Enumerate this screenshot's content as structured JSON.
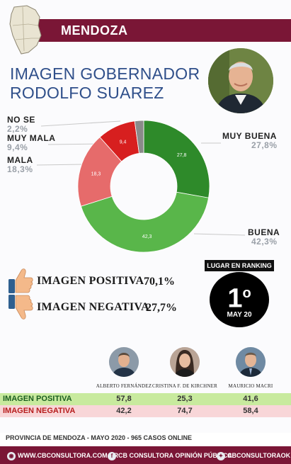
{
  "header": {
    "title": "MENDOZA"
  },
  "main_title": "IMAGEN GOBERNADOR RODOLFO SUAREZ",
  "chart_data": {
    "type": "pie",
    "categories": [
      "MUY BUENA",
      "BUENA",
      "MALA",
      "MUY MALA",
      "NO SE"
    ],
    "values": [
      27.8,
      42.3,
      18.3,
      9.4,
      2.2
    ],
    "value_labels": [
      "27,8%",
      "42,3%",
      "18,3%",
      "9,4%",
      "2,2%"
    ],
    "inner_labels": [
      "27,8",
      "42,3",
      "18,3",
      "9,4",
      ""
    ],
    "colors": [
      "#2e8a2a",
      "#59b64a",
      "#e66b6b",
      "#d71f1f",
      "#8a8a8a"
    ]
  },
  "image_summary": {
    "positive_label": "IMAGEN POSITIVA",
    "positive_value": "70,1%",
    "negative_label": "IMAGEN NEGATIVA",
    "negative_value": "27,7%"
  },
  "ranking": {
    "title": "LUGAR EN RANKING",
    "number": "1",
    "suffix": "o",
    "period": "MAY 20"
  },
  "comparison": {
    "candidates": [
      "ALBERTO FERNÁNDEZ",
      "CRISTINA F. DE KIRCHNER",
      "MAURICIO MACRI"
    ],
    "positive_label": "IMAGEN POSITIVA",
    "negative_label": "IMAGEN NEGATIVA",
    "positive_values": [
      "57,8",
      "25,3",
      "41,6"
    ],
    "negative_values": [
      "42,2",
      "74,7",
      "58,4"
    ],
    "positive_color": "#c8ea9e",
    "negative_color": "#f8d6d8"
  },
  "footer": {
    "text": "PROVINCIA DE MENDOZA - MAYO 2020 -  965 CASOS ONLINE"
  },
  "social": {
    "web": "WWW.CBCONSULTORA.COM.AR",
    "facebook": "CB CONSULTORA OPINIÓN PÚBLICA",
    "twitter": "CBCONSULTORAOK"
  },
  "brand_color": "#7a1636"
}
